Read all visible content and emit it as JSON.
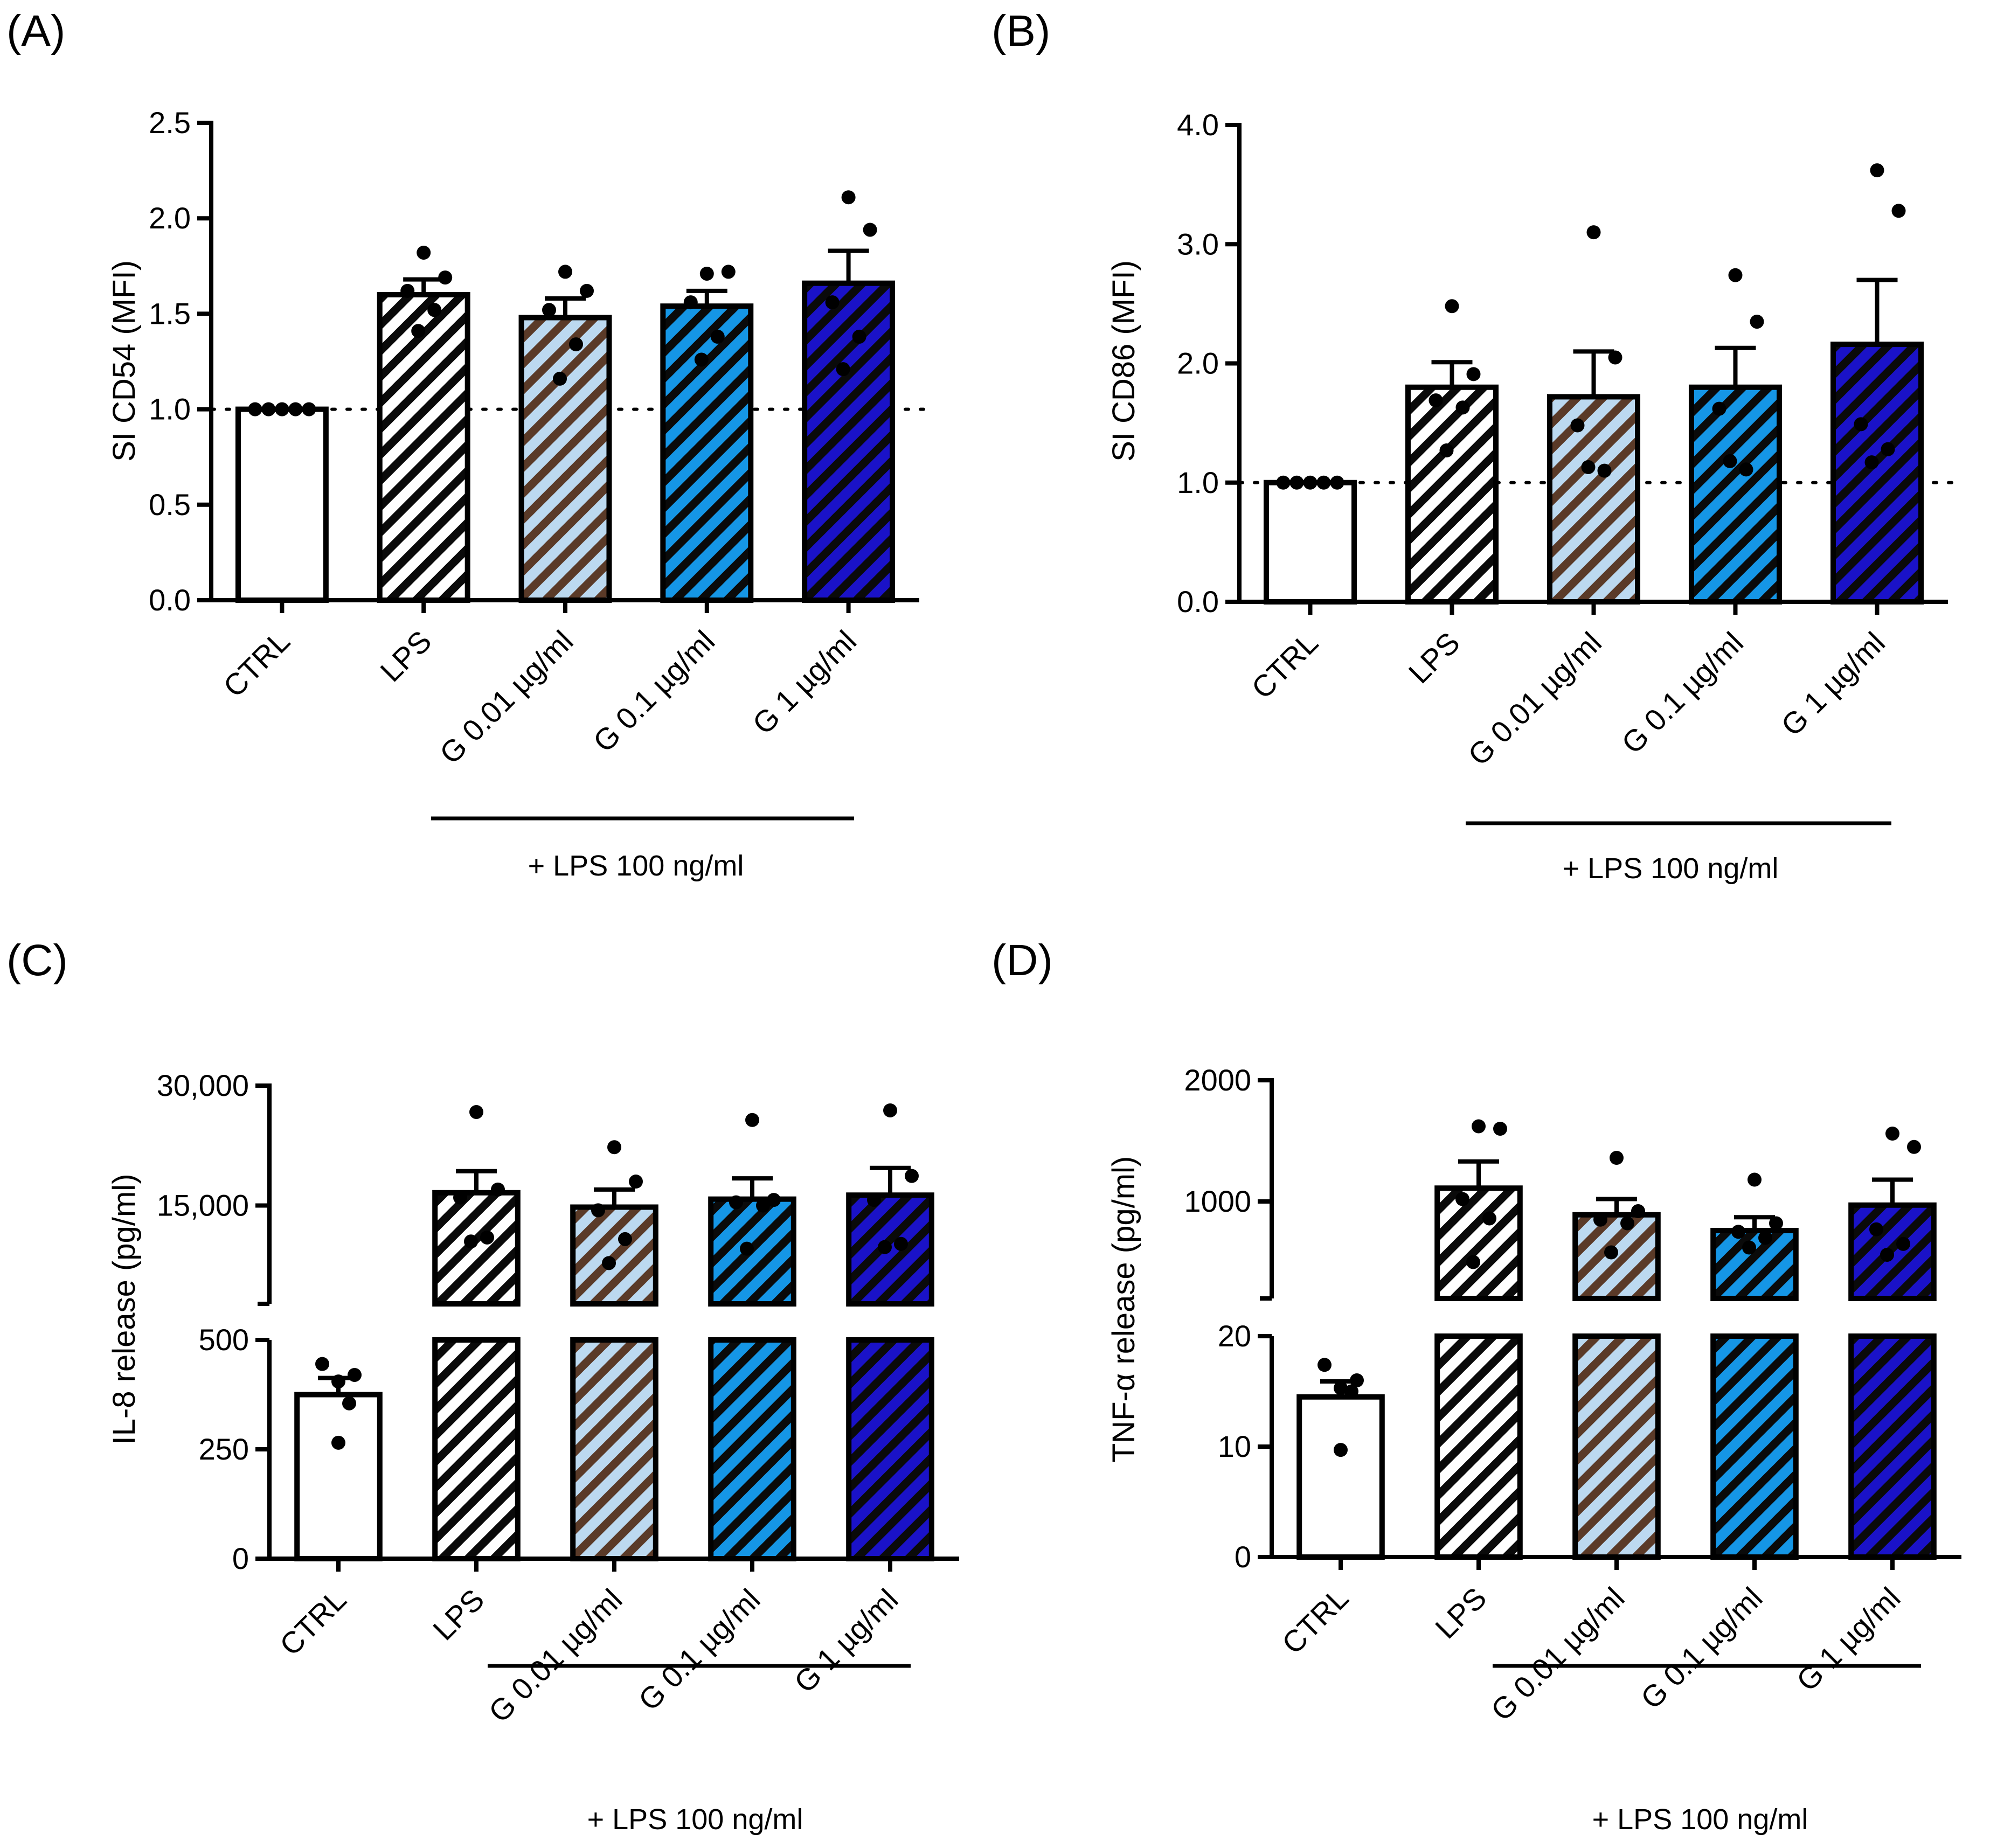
{
  "colors": {
    "ctrl": "#ffffff",
    "lps": "#ffffff",
    "g001": "#bcd9f0",
    "g01": "#1596e6",
    "g1": "#1a12c8",
    "stripe": "#0a0a0a",
    "stripe_g001": "#5a3a28"
  },
  "chart_data": [
    {
      "panel": "(A)",
      "type": "bar",
      "title": "",
      "ylabel": "SI CD54 (MFI)",
      "categories": [
        "CTRL",
        "LPS",
        "G 0.01 µg/ml",
        "G 0.1 µg/ml",
        "G 1 µg/ml"
      ],
      "values": [
        1.0,
        1.6,
        1.48,
        1.54,
        1.66
      ],
      "sem": [
        0,
        0.08,
        0.1,
        0.08,
        0.17
      ],
      "points": [
        [
          1,
          1,
          1,
          1,
          1
        ],
        [
          1.82,
          1.69,
          1.62,
          1.52,
          1.41
        ],
        [
          1.72,
          1.62,
          1.52,
          1.34,
          1.16
        ],
        [
          1.71,
          1.72,
          1.56,
          1.38,
          1.26
        ],
        [
          2.11,
          1.94,
          1.56,
          1.38,
          1.21
        ]
      ],
      "ylim": [
        0,
        2.5
      ],
      "yticks": [
        "0.0",
        "0.5",
        "1.0",
        "1.5",
        "2.0",
        "2.5"
      ],
      "reference_line": 1.0,
      "bracket_label": "+ LPS 100 ng/ml"
    },
    {
      "panel": "(B)",
      "type": "bar",
      "title": "",
      "ylabel": "SI CD86 (MFI)",
      "categories": [
        "CTRL",
        "LPS",
        "G 0.01 µg/ml",
        "G 0.1 µg/ml",
        "G 1 µg/ml"
      ],
      "values": [
        1.0,
        1.8,
        1.72,
        1.8,
        2.16
      ],
      "sem": [
        0,
        0.21,
        0.38,
        0.33,
        0.54
      ],
      "points": [
        [
          1,
          1,
          1,
          1,
          1
        ],
        [
          2.48,
          1.91,
          1.69,
          1.63,
          1.27
        ],
        [
          3.1,
          2.05,
          1.48,
          1.1,
          1.13
        ],
        [
          2.74,
          2.35,
          1.62,
          1.11,
          1.18
        ],
        [
          3.62,
          3.28,
          1.49,
          1.28,
          1.17
        ]
      ],
      "ylim": [
        0,
        4.0
      ],
      "yticks": [
        "0.0",
        "1.0",
        "2.0",
        "3.0",
        "4.0"
      ],
      "reference_line": 1.0,
      "bracket_label": "+ LPS 100 ng/ml"
    },
    {
      "panel": "(C)",
      "type": "bar",
      "title": "",
      "ylabel": "IL-8 release (pg/ml)",
      "broken_axis": true,
      "lower_range": [
        0,
        500
      ],
      "upper_range": [
        2700,
        30000
      ],
      "yticks_lower": [
        "0",
        "250",
        "500"
      ],
      "yticks_upper": [
        "15,000",
        "30,000"
      ],
      "categories": [
        "CTRL",
        "LPS",
        "G 0.01 µg/ml",
        "G 0.1 µg/ml",
        "G 1 µg/ml"
      ],
      "values": [
        375,
        16600,
        14800,
        15800,
        16300
      ],
      "sem": [
        38,
        2700,
        2200,
        2600,
        3400
      ],
      "points": [
        [
          445,
          420,
          405,
          355,
          265
        ],
        [
          26700,
          17000,
          16000,
          11000,
          10500
        ],
        [
          22300,
          18000,
          14400,
          10800,
          7800
        ],
        [
          25700,
          15700,
          15400,
          15000,
          9600
        ],
        [
          26900,
          18700,
          15700,
          10200,
          9800
        ]
      ],
      "bracket_label": "+ LPS 100 ng/ml"
    },
    {
      "panel": "(D)",
      "type": "bar",
      "title": "",
      "ylabel": "TNF-α release (pg/ml)",
      "broken_axis": true,
      "lower_range": [
        0,
        20
      ],
      "upper_range": [
        200,
        2000
      ],
      "yticks_lower": [
        "0",
        "10",
        "20"
      ],
      "yticks_upper": [
        "1000",
        "2000"
      ],
      "categories": [
        "CTRL",
        "LPS",
        "G 0.01 µg/ml",
        "G 0.1 µg/ml",
        "G 1 µg/ml"
      ],
      "values": [
        14.5,
        1110,
        890,
        760,
        970
      ],
      "sem": [
        1.4,
        220,
        130,
        110,
        210
      ],
      "points": [
        [
          17.4,
          16.0,
          15.3,
          15.0,
          9.7
        ],
        [
          1620,
          1600,
          1020,
          860,
          500
        ],
        [
          1360,
          920,
          850,
          820,
          580
        ],
        [
          1180,
          820,
          750,
          700,
          620
        ],
        [
          1560,
          1450,
          770,
          650,
          560
        ]
      ],
      "bracket_label": "+ LPS 100 ng/ml"
    }
  ]
}
